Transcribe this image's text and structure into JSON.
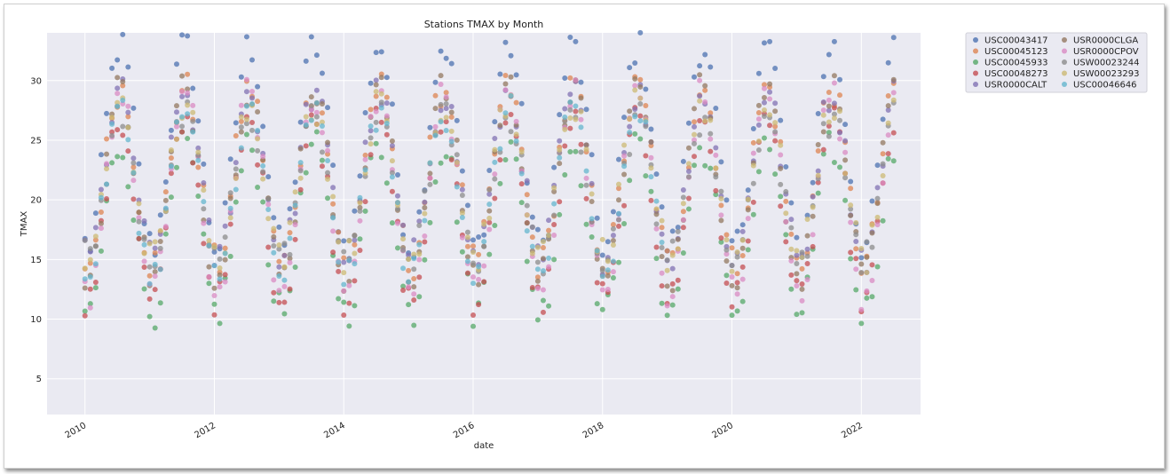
{
  "chart_data": {
    "type": "scatter",
    "title": "Stations TMAX by Month",
    "xlabel": "date",
    "ylabel": "TMAX",
    "xlim": [
      "2009-06-01",
      "2022-12-01"
    ],
    "ylim": [
      2,
      34
    ],
    "yticks": [
      5,
      10,
      15,
      20,
      25,
      30
    ],
    "xticks": [
      "2010",
      "2012",
      "2014",
      "2016",
      "2018",
      "2020",
      "2022"
    ],
    "grid": true,
    "legend_position": "outside-top-right",
    "series": [
      {
        "name": "USC00043417",
        "color": "#4c72b0",
        "offset": 4,
        "amp": 8.5,
        "years": [
          2010,
          2011,
          2012,
          2013,
          2014,
          2015,
          2016,
          2017,
          2018,
          2019,
          2020,
          2021,
          2022
        ]
      },
      {
        "name": "USC00045123",
        "color": "#dd8452",
        "offset": 1.5,
        "amp": 7.5,
        "years": [
          2010,
          2011,
          2012,
          2013,
          2014,
          2015,
          2016,
          2017,
          2018,
          2019,
          2020,
          2021,
          2022
        ]
      },
      {
        "name": "USC00045933",
        "color": "#55a868",
        "offset": -3,
        "amp": 7.0,
        "years": [
          2010,
          2011,
          2012,
          2013,
          2014,
          2015,
          2016,
          2017,
          2018,
          2019,
          2020,
          2021,
          2022
        ]
      },
      {
        "name": "USC00048273",
        "color": "#c44e52",
        "offset": -1.5,
        "amp": 7.5,
        "years": [
          2010,
          2011,
          2012,
          2013,
          2014,
          2015,
          2016,
          2017,
          2018,
          2019,
          2020,
          2021,
          2022
        ]
      },
      {
        "name": "USR0000CALT",
        "color": "#8172b3",
        "offset": 1.5,
        "amp": 7.0,
        "years": [
          2010,
          2011,
          2012,
          2013,
          2014,
          2015,
          2016,
          2017,
          2018,
          2019,
          2020,
          2021,
          2022
        ]
      },
      {
        "name": "USR0000CLGA",
        "color": "#937860",
        "offset": 1.0,
        "amp": 8.0,
        "years": [
          2010,
          2011,
          2012,
          2013,
          2014,
          2015,
          2016,
          2017,
          2018,
          2019,
          2020,
          2021,
          2022
        ]
      },
      {
        "name": "USR0000CPOV",
        "color": "#da8bc3",
        "offset": 0.0,
        "amp": 8.5,
        "years": [
          2010,
          2011,
          2012,
          2013,
          2014,
          2015,
          2016,
          2017,
          2018,
          2019,
          2020,
          2021,
          2022
        ]
      },
      {
        "name": "USW00023244",
        "color": "#8c8c8c",
        "offset": 0.5,
        "amp": 6.0,
        "years": [
          2010,
          2011,
          2012,
          2013,
          2014,
          2015,
          2016,
          2017,
          2018,
          2019,
          2020,
          2021,
          2022
        ]
      },
      {
        "name": "USW00023293",
        "color": "#ccb974",
        "offset": 1.0,
        "amp": 6.5,
        "years": [
          2010,
          2011,
          2012,
          2013,
          2014,
          2015,
          2016,
          2017,
          2018,
          2019,
          2020,
          2021,
          2022
        ]
      },
      {
        "name": "USC00046646",
        "color": "#64b5cd",
        "offset": 0.0,
        "amp": 7.0,
        "years": [
          2010,
          2011,
          2012,
          2013,
          2014,
          2015,
          2016,
          2017,
          2018
        ]
      }
    ],
    "base_mean": 20.5
  }
}
